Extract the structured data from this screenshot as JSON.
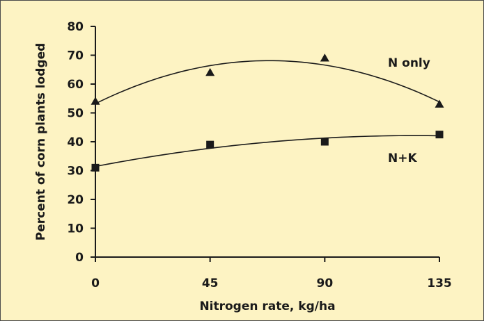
{
  "chart_data": {
    "type": "scatter",
    "xlabel": "Nitrogen rate, kg/ha",
    "ylabel": "Percent of corn plants lodged",
    "x_ticks": [
      "0",
      "45",
      "90",
      "135"
    ],
    "y_ticks": [
      "0",
      "10",
      "20",
      "30",
      "40",
      "50",
      "60",
      "70",
      "80"
    ],
    "xlim": [
      0,
      135
    ],
    "ylim": [
      0,
      80
    ],
    "grid": false,
    "legend": "none",
    "series": [
      {
        "name": "N only",
        "marker": "triangle",
        "trendline": "quadratic",
        "x": [
          0,
          45,
          90,
          135
        ],
        "y": [
          54,
          64,
          69,
          53
        ]
      },
      {
        "name": "N+K",
        "marker": "square",
        "trendline": "quadratic",
        "x": [
          0,
          45,
          90,
          135
        ],
        "y": [
          31,
          39,
          40,
          42.5
        ]
      }
    ],
    "colors": {
      "background": "#fdf3c3",
      "marks": "#1a1a1a"
    }
  }
}
